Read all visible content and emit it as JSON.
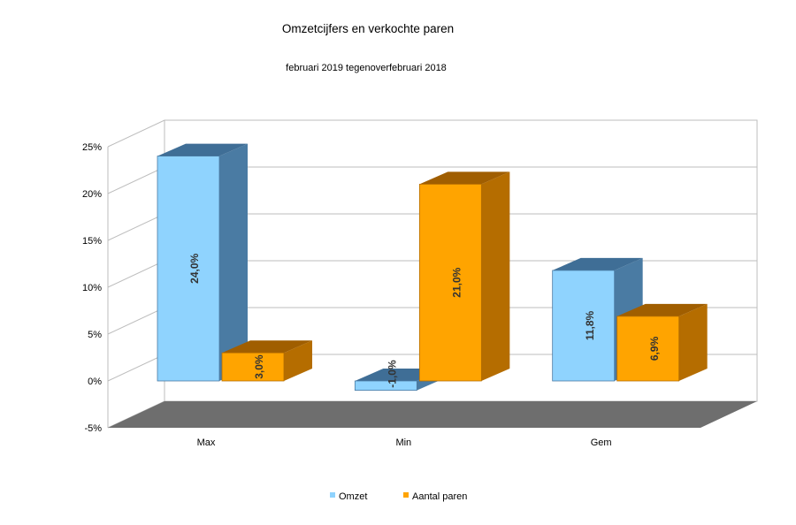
{
  "chart_data": {
    "type": "bar",
    "title": "Omzetcijfers en verkochte paren",
    "subtitle": "februari 2019 tegenoverfebruari 2018",
    "categories": [
      "Max",
      "Min",
      "Gem"
    ],
    "series": [
      {
        "name": "Omzet",
        "values": [
          24.0,
          -1.0,
          11.8
        ],
        "labels": [
          "24,0%",
          "-1,0%",
          "11,8%"
        ]
      },
      {
        "name": "Aantal paren",
        "values": [
          3.0,
          21.0,
          6.9
        ],
        "labels": [
          "3,0%",
          "21,0%",
          "6,9%"
        ]
      }
    ],
    "ylim": [
      -5,
      25
    ],
    "yticks": [
      25,
      20,
      15,
      10,
      5,
      0,
      -5
    ],
    "ytick_labels": [
      "25%",
      "20%",
      "15%",
      "10%",
      "5%",
      "0%",
      "-5%"
    ],
    "grid": true,
    "legend": "bottom",
    "colors": {
      "omzet_front": "#8fd3fe",
      "omzet_side": "#4a7ba3",
      "omzet_top": "#3f6e96",
      "paren_front": "#ffa400",
      "paren_side": "#b56d00",
      "paren_top": "#a05e00",
      "floor": "#6e6e6e",
      "grid": "#bdbdbd"
    }
  }
}
